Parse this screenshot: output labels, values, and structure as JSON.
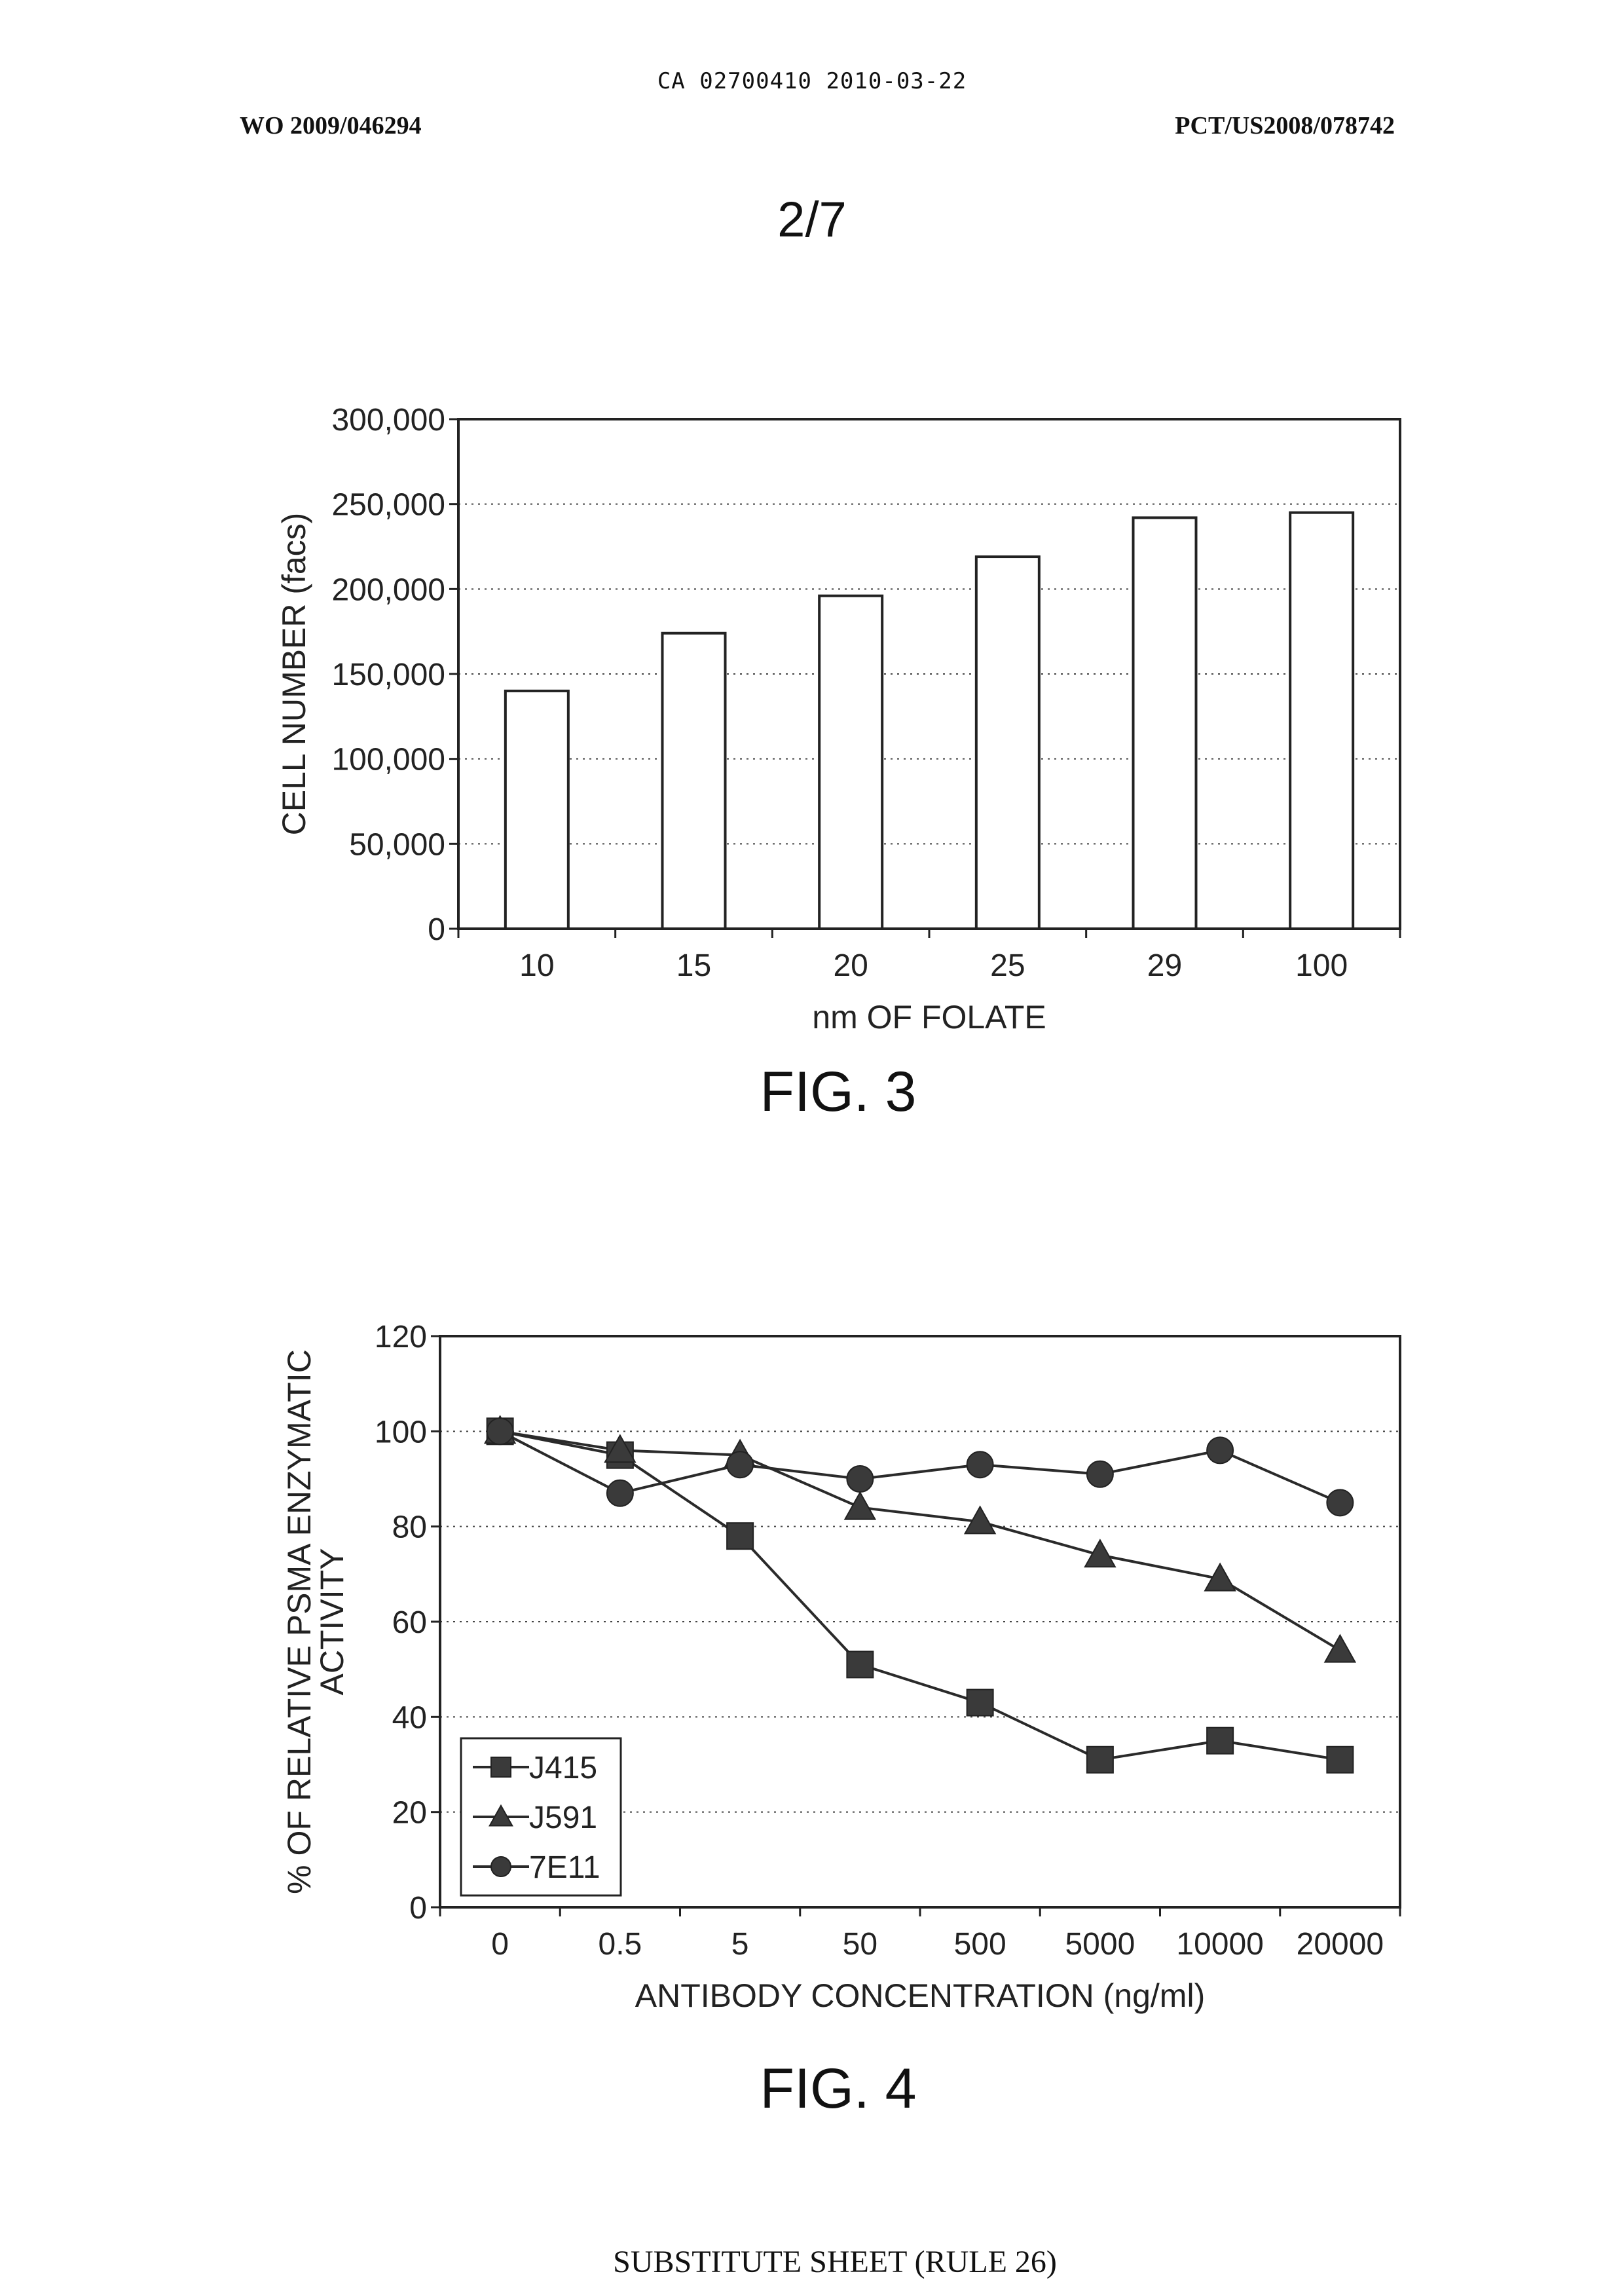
{
  "header": {
    "ca_number": "CA 02700410 2010-03-22",
    "wo_number": "WO 2009/046294",
    "pct_number": "PCT/US2008/078742"
  },
  "sheet_number": "2/7",
  "figures": [
    {
      "caption": "FIG. 3",
      "chart_data": {
        "type": "bar",
        "title": "",
        "xlabel": "nm OF FOLATE",
        "ylabel": "CELL NUMBER (facs)",
        "categories": [
          "10",
          "15",
          "20",
          "25",
          "29",
          "100"
        ],
        "values": [
          140000,
          174000,
          196000,
          219000,
          242000,
          245000
        ],
        "ylim": [
          0,
          300000
        ],
        "yticks": [
          0,
          50000,
          100000,
          150000,
          200000,
          250000,
          300000
        ],
        "ytick_labels": [
          "0",
          "50,000",
          "100,000",
          "150,000",
          "200,000",
          "250,000",
          "300,000"
        ],
        "grid": "horizontal dotted",
        "bar_color": "#ffffff"
      }
    },
    {
      "caption": "FIG. 4",
      "chart_data": {
        "type": "line",
        "title": "",
        "xlabel": "ANTIBODY CONCENTRATION (ng/ml)",
        "ylabel_lines": [
          "% OF RELATIVE PSMA ENZYMATIC",
          "ACTIVITY"
        ],
        "categories": [
          "0",
          "0.5",
          "5",
          "50",
          "500",
          "5000",
          "10000",
          "20000"
        ],
        "ylim": [
          0,
          120
        ],
        "yticks": [
          0,
          20,
          40,
          60,
          80,
          100,
          120
        ],
        "grid": "horizontal dotted",
        "legend": "bottom-left",
        "series": [
          {
            "name": "J415",
            "marker": "square",
            "values": [
              100,
              95,
              78,
              51,
              43,
              31,
              35,
              31
            ]
          },
          {
            "name": "J591",
            "marker": "triangle",
            "values": [
              100,
              96,
              95,
              84,
              81,
              74,
              69,
              54
            ]
          },
          {
            "name": "7E11",
            "marker": "circle",
            "values": [
              100,
              87,
              93,
              90,
              93,
              91,
              96,
              85
            ]
          }
        ]
      }
    }
  ],
  "footer": "SUBSTITUTE SHEET (RULE 26)"
}
